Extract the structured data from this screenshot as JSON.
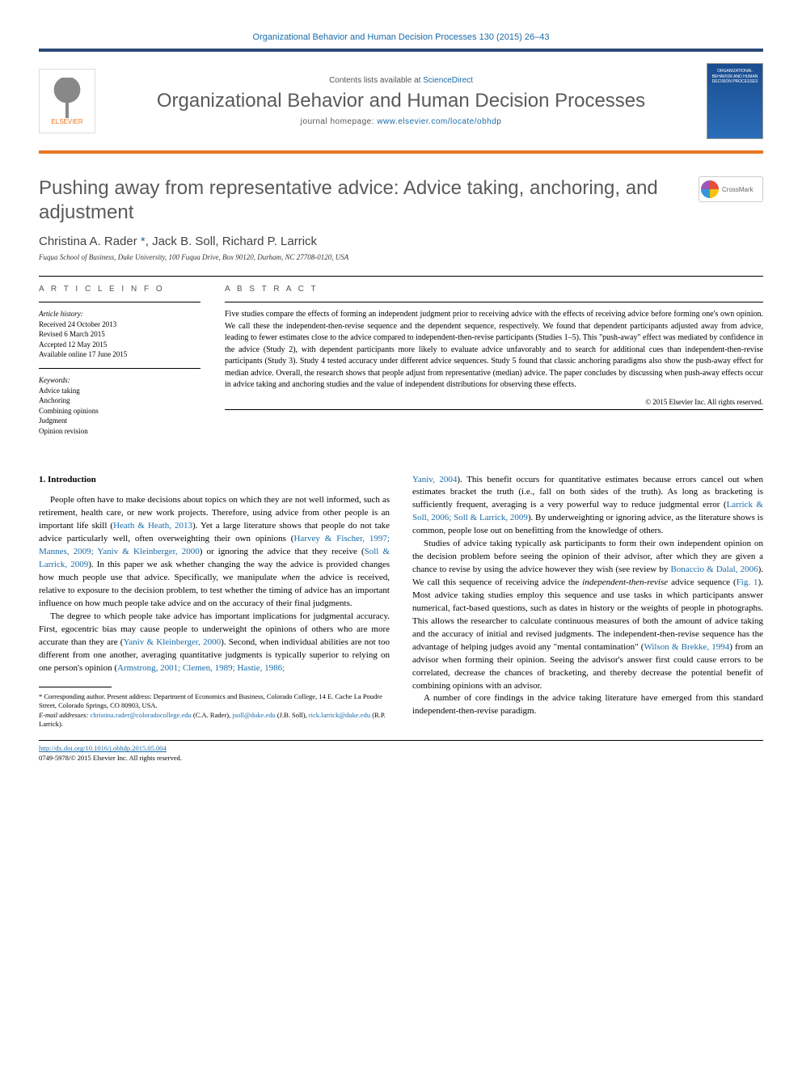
{
  "header": {
    "journal_ref": "Organizational Behavior and Human Decision Processes 130 (2015) 26–43",
    "contents_prefix": "Contents lists available at ",
    "contents_link": "ScienceDirect",
    "journal_title": "Organizational Behavior and Human Decision Processes",
    "homepage_prefix": "journal homepage: ",
    "homepage_link": "www.elsevier.com/locate/obhdp",
    "elsevier_label": "ELSEVIER",
    "cover_text": "ORGANIZATIONAL BEHAVIOR AND HUMAN DECISION PROCESSES",
    "crossmark": "CrossMark"
  },
  "article": {
    "title": "Pushing away from representative advice: Advice taking, anchoring, and adjustment",
    "authors_html": "Christina A. Rader <span class='link'>*</span>, Jack B. Soll, Richard P. Larrick",
    "affiliation": "Fuqua School of Business, Duke University, 100 Fuqua Drive, Box 90120, Durham, NC 27708-0120, USA"
  },
  "info": {
    "label": "A R T I C L E   I N F O",
    "history_hdr": "Article history:",
    "history": "Received 24 October 2013\nRevised 6 March 2015\nAccepted 12 May 2015\nAvailable online 17 June 2015",
    "keywords_hdr": "Keywords:",
    "keywords": "Advice taking\nAnchoring\nCombining opinions\nJudgment\nOpinion revision"
  },
  "abstract": {
    "label": "A B S T R A C T",
    "text": "Five studies compare the effects of forming an independent judgment prior to receiving advice with the effects of receiving advice before forming one's own opinion. We call these the independent-then-revise sequence and the dependent sequence, respectively. We found that dependent participants adjusted away from advice, leading to fewer estimates close to the advice compared to independent-then-revise participants (Studies 1–5). This \"push-away\" effect was mediated by confidence in the advice (Study 2), with dependent participants more likely to evaluate advice unfavorably and to search for additional cues than independent-then-revise participants (Study 3). Study 4 tested accuracy under different advice sequences. Study 5 found that classic anchoring paradigms also show the push-away effect for median advice. Overall, the research shows that people adjust from representative (median) advice. The paper concludes by discussing when push-away effects occur in advice taking and anchoring studies and the value of independent distributions for observing these effects.",
    "copyright": "© 2015 Elsevier Inc. All rights reserved."
  },
  "body": {
    "intro_heading": "1. Introduction",
    "left_p1": "People often have to make decisions about topics on which they are not well informed, such as retirement, health care, or new work projects. Therefore, using advice from other people is an important life skill (<span class='link'>Heath & Heath, 2013</span>). Yet a large literature shows that people do not take advice particularly well, often overweighting their own opinions (<span class='link'>Harvey & Fischer, 1997; Mannes, 2009; Yaniv & Kleinberger, 2000</span>) or ignoring the advice that they receive (<span class='link'>Soll & Larrick, 2009</span>). In this paper we ask whether changing the way the advice is provided changes how much people use that advice. Specifically, we manipulate <i>when</i> the advice is received, relative to exposure to the decision problem, to test whether the timing of advice has an important influence on how much people take advice and on the accuracy of their final judgments.",
    "left_p2": "The degree to which people take advice has important implications for judgmental accuracy. First, egocentric bias may cause people to underweight the opinions of others who are more accurate than they are (<span class='link'>Yaniv & Kleinberger, 2000</span>). Second, when individual abilities are not too different from one another, averaging quantitative judgments is typically superior to relying on one person's opinion (<span class='link'>Armstrong, 2001; Clemen, 1989; Hastie, 1986;</span>",
    "right_p1": "<span class='link'>Yaniv, 2004</span>). This benefit occurs for quantitative estimates because errors cancel out when estimates bracket the truth (i.e., fall on both sides of the truth). As long as bracketing is sufficiently frequent, averaging is a very powerful way to reduce judgmental error (<span class='link'>Larrick & Soll, 2006; Soll & Larrick, 2009</span>). By underweighting or ignoring advice, as the literature shows is common, people lose out on benefitting from the knowledge of others.",
    "right_p2": "Studies of advice taking typically ask participants to form their own independent opinion on the decision problem before seeing the opinion of their advisor, after which they are given a chance to revise by using the advice however they wish (see review by <span class='link'>Bonaccio & Dalal, 2006</span>). We call this sequence of receiving advice the <i>independent-then-revise</i> advice sequence (<span class='link'>Fig. 1</span>). Most advice taking studies employ this sequence and use tasks in which participants answer numerical, fact-based questions, such as dates in history or the weights of people in photographs. This allows the researcher to calculate continuous measures of both the amount of advice taking and the accuracy of initial and revised judgments. The independent-then-revise sequence has the advantage of helping judges avoid any \"mental contamination\" (<span class='link'>Wilson & Brekke, 1994</span>) from an advisor when forming their opinion. Seeing the advisor's answer first could cause errors to be correlated, decrease the chances of bracketing, and thereby decrease the potential benefit of combining opinions with an advisor.",
    "right_p3": "A number of core findings in the advice taking literature have emerged from this standard independent-then-revise paradigm."
  },
  "footnote": {
    "corr": "* Corresponding author. Present address: Department of Economics and Business, Colorado College, 14 E. Cache La Poudre Street, Colorado Springs, CO 80903, USA.",
    "emails_label": "E-mail addresses:",
    "emails_html": "<span class='link'>christina.rader@coloradocollege.edu</span> (C.A. Rader), <span class='link'>jsoll@duke.edu</span> (J.B. Soll), <span class='link'>rick.larrick@duke.edu</span> (R.P. Larrick)."
  },
  "footer": {
    "doi": "http://dx.doi.org/10.1016/j.obhdp.2015.05.004",
    "issn_line": "0749-5978/© 2015 Elsevier Inc. All rights reserved."
  }
}
